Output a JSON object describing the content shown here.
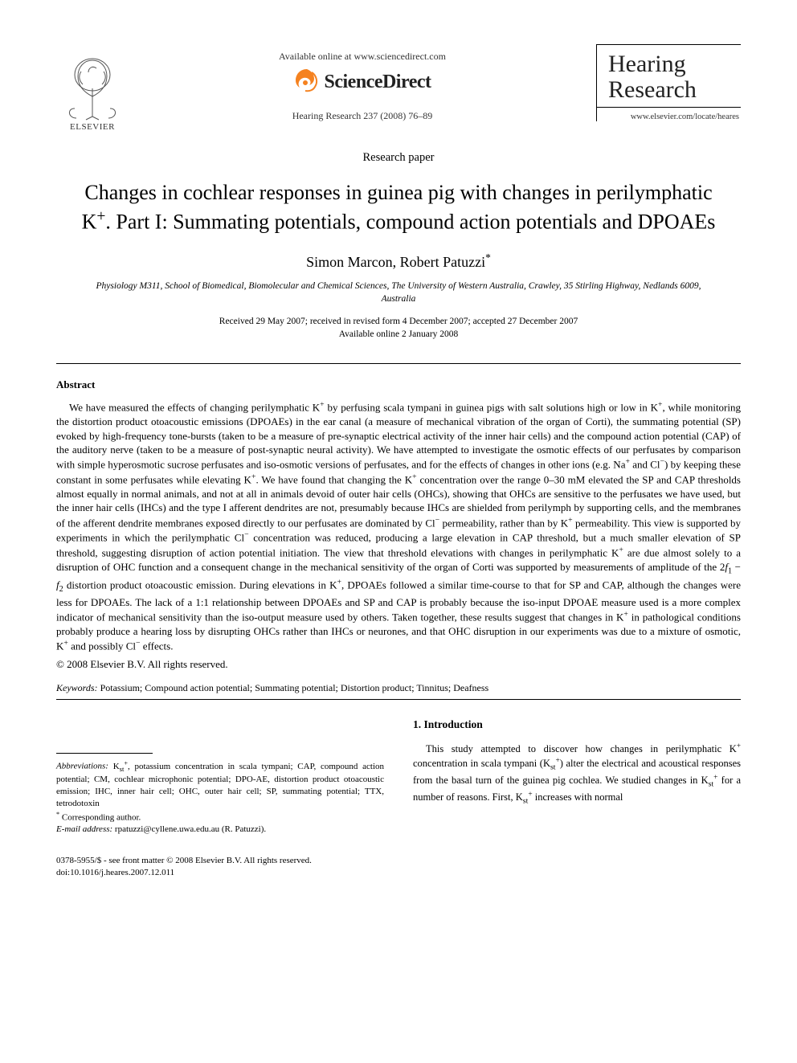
{
  "header": {
    "publisher_name": "ELSEVIER",
    "available_line": "Available online at www.sciencedirect.com",
    "sciencedirect_label": "ScienceDirect",
    "citation": "Hearing Research 237 (2008) 76–89",
    "journal_title_line1": "Hearing",
    "journal_title_line2": "Research",
    "journal_url": "www.elsevier.com/locate/heares"
  },
  "paper": {
    "type": "Research paper",
    "title_html": "Changes in cochlear responses in guinea pig with changes in perilymphatic K<sup>+</sup>. Part I: Summating potentials, compound action potentials and DPOAEs",
    "authors_html": "Simon Marcon, Robert Patuzzi<sup>*</sup>",
    "affiliation": "Physiology M311, School of Biomedical, Biomolecular and Chemical Sciences, The University of Western Australia, Crawley, 35 Stirling Highway, Nedlands 6009, Australia",
    "dates_line1": "Received 29 May 2007; received in revised form 4 December 2007; accepted 27 December 2007",
    "dates_line2": "Available online 2 January 2008"
  },
  "abstract": {
    "label": "Abstract",
    "body_html": "We have measured the effects of changing perilymphatic K<sup>+</sup> by perfusing scala tympani in guinea pigs with salt solutions high or low in K<sup>+</sup>, while monitoring the distortion product otoacoustic emissions (DPOAEs) in the ear canal (a measure of mechanical vibration of the organ of Corti), the summating potential (SP) evoked by high-frequency tone-bursts (taken to be a measure of pre-synaptic electrical activity of the inner hair cells) and the compound action potential (CAP) of the auditory nerve (taken to be a measure of post-synaptic neural activity). We have attempted to investigate the osmotic effects of our perfusates by comparison with simple hyperosmotic sucrose perfusates and iso-osmotic versions of perfusates, and for the effects of changes in other ions (e.g. Na<sup>+</sup> and Cl<sup>−</sup>) by keeping these constant in some perfusates while elevating K<sup>+</sup>. We have found that changing the K<sup>+</sup> concentration over the range 0–30 mM elevated the SP and CAP thresholds almost equally in normal animals, and not at all in animals devoid of outer hair cells (OHCs), showing that OHCs are sensitive to the perfusates we have used, but the inner hair cells (IHCs) and the type I afferent dendrites are not, presumably because IHCs are shielded from perilymph by supporting cells, and the membranes of the afferent dendrite membranes exposed directly to our perfusates are dominated by Cl<sup>−</sup> permeability, rather than by K<sup>+</sup> permeability. This view is supported by experiments in which the perilymphatic Cl<sup>−</sup> concentration was reduced, producing a large elevation in CAP threshold, but a much smaller elevation of SP threshold, suggesting disruption of action potential initiation. The view that threshold elevations with changes in perilymphatic K<sup>+</sup> are due almost solely to a disruption of OHC function and a consequent change in the mechanical sensitivity of the organ of Corti was supported by measurements of amplitude of the 2<i>f</i><sub>1</sub> − <i>f</i><sub>2</sub> distortion product otoacoustic emission. During elevations in K<sup>+</sup>, DPOAEs followed a similar time-course to that for SP and CAP, although the changes were less for DPOAEs. The lack of a 1:1 relationship between DPOAEs and SP and CAP is probably because the iso-input DPOAE measure used is a more complex indicator of mechanical sensitivity than the iso-output measure used by others. Taken together, these results suggest that changes in K<sup>+</sup> in pathological conditions probably produce a hearing loss by disrupting OHCs rather than IHCs or neurones, and that OHC disruption in our experiments was due to a mixture of osmotic, K<sup>+</sup> and possibly Cl<sup>−</sup> effects.",
    "copyright": "© 2008 Elsevier B.V. All rights reserved."
  },
  "keywords": {
    "label": "Keywords:",
    "text": "Potassium; Compound action potential; Summating potential; Distortion product; Tinnitus; Deafness"
  },
  "footnotes": {
    "abbrev_label": "Abbreviations:",
    "abbrev_text_html": "K<sub>st</sub><sup>+</sup>, potassium concentration in scala tympani; CAP, compound action potential; CM, cochlear microphonic potential; DPO-AE, distortion product otoacoustic emission; IHC, inner hair cell; OHC, outer hair cell; SP, summating potential; TTX, tetrodotoxin",
    "corresponding_marker": "*",
    "corresponding_text": "Corresponding author.",
    "email_label": "E-mail address:",
    "email_value": "rpatuzzi@cyllene.uwa.edu.au",
    "email_whom": "(R. Patuzzi)."
  },
  "intro": {
    "heading": "1. Introduction",
    "body_html": "This study attempted to discover how changes in perilymphatic K<sup>+</sup> concentration in scala tympani (K<sub>st</sub><sup>+</sup>) alter the electrical and acoustical responses from the basal turn of the guinea pig cochlea. We studied changes in K<sub>st</sub><sup>+</sup> for a number of reasons. First, K<sub>st</sub><sup>+</sup> increases with normal"
  },
  "bottom": {
    "issn_line": "0378-5955/$ - see front matter © 2008 Elsevier B.V. All rights reserved.",
    "doi_line": "doi:10.1016/j.heares.2007.12.011"
  },
  "colors": {
    "text": "#000000",
    "bg": "#ffffff",
    "sd_orange": "#f58220",
    "grey": "#555555"
  }
}
